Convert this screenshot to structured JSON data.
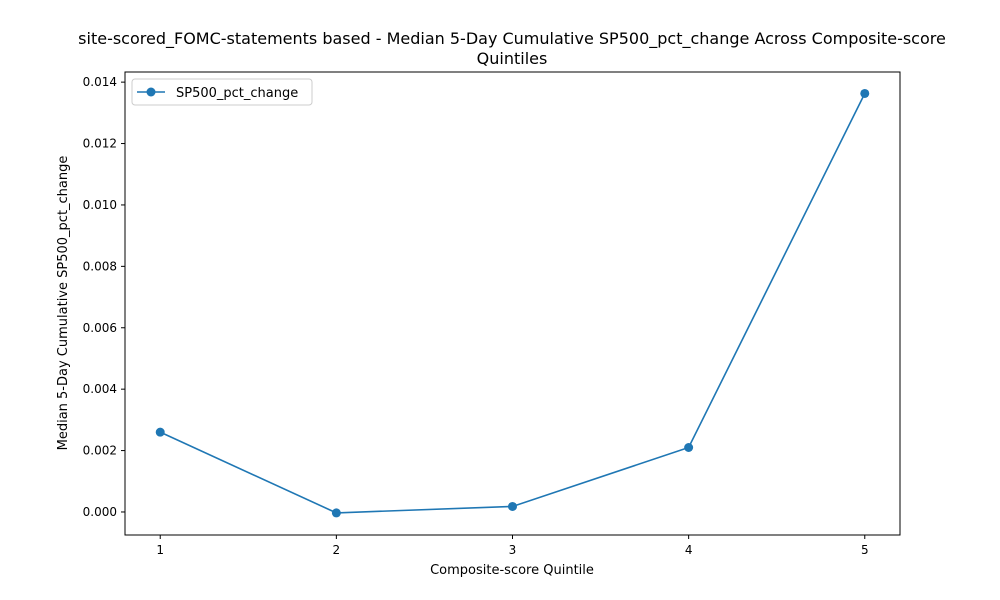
{
  "chart_data": {
    "type": "line",
    "title": "site-scored_FOMC-statements based - Median 5-Day Cumulative SP500_pct_change Across Composite-score Quintiles",
    "title_lines": [
      "site-scored_FOMC-statements based - Median 5-Day Cumulative SP500_pct_change Across Composite-score",
      "Quintiles"
    ],
    "xlabel": "Composite-score Quintile",
    "ylabel": "Median 5-Day Cumulative SP500_pct_change",
    "x": [
      1,
      2,
      3,
      4,
      5
    ],
    "xlim": [
      0.8,
      5.2
    ],
    "ylim": [
      -0.00075,
      0.01433
    ],
    "x_ticks": [
      1,
      2,
      3,
      4,
      5
    ],
    "x_tick_labels": [
      "1",
      "2",
      "3",
      "4",
      "5"
    ],
    "y_ticks": [
      0.0,
      0.002,
      0.004,
      0.006,
      0.008,
      0.01,
      0.012,
      0.014
    ],
    "y_tick_labels": [
      "0.000",
      "0.002",
      "0.004",
      "0.006",
      "0.008",
      "0.010",
      "0.012",
      "0.014"
    ],
    "series": [
      {
        "name": "SP500_pct_change",
        "values": [
          0.0026,
          -3e-05,
          0.00018,
          0.0021,
          0.01363
        ],
        "color": "#1f77b4",
        "marker": "circle"
      }
    ],
    "legend": {
      "position": "top-left"
    },
    "grid": false
  }
}
